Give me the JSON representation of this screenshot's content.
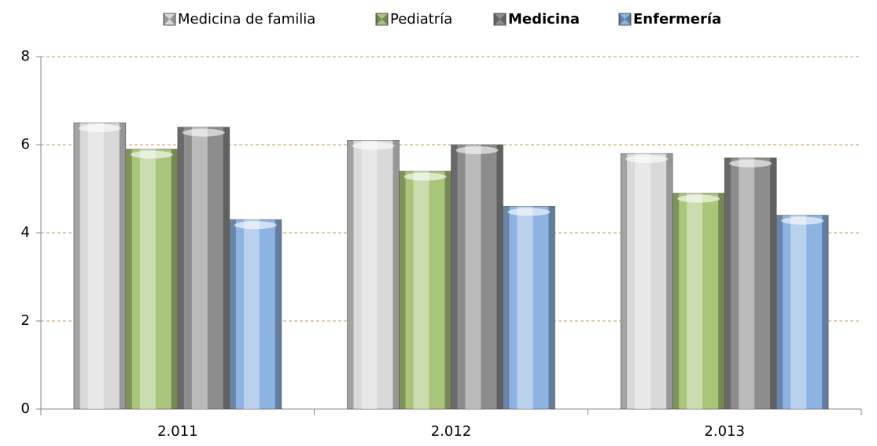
{
  "chart_data": {
    "type": "bar",
    "categories": [
      "2.011",
      "2.012",
      "2.013"
    ],
    "series": [
      {
        "name": "Medicina de familia",
        "color": "#d9d9d9",
        "values": [
          6.5,
          6.1,
          5.8
        ]
      },
      {
        "name": "Pediatría",
        "color": "#a9c57a",
        "values": [
          5.9,
          5.4,
          4.9
        ]
      },
      {
        "name": "Medicina",
        "color": "#8c8c8c",
        "values": [
          6.4,
          6.0,
          5.7
        ],
        "bold": true
      },
      {
        "name": "Enfermería",
        "color": "#8db3e2",
        "values": [
          4.3,
          4.6,
          4.4
        ],
        "bold": true
      }
    ],
    "ylim": [
      0,
      8
    ],
    "yticks": [
      0,
      2,
      4,
      6,
      8
    ],
    "grid": true,
    "legend": "top"
  }
}
